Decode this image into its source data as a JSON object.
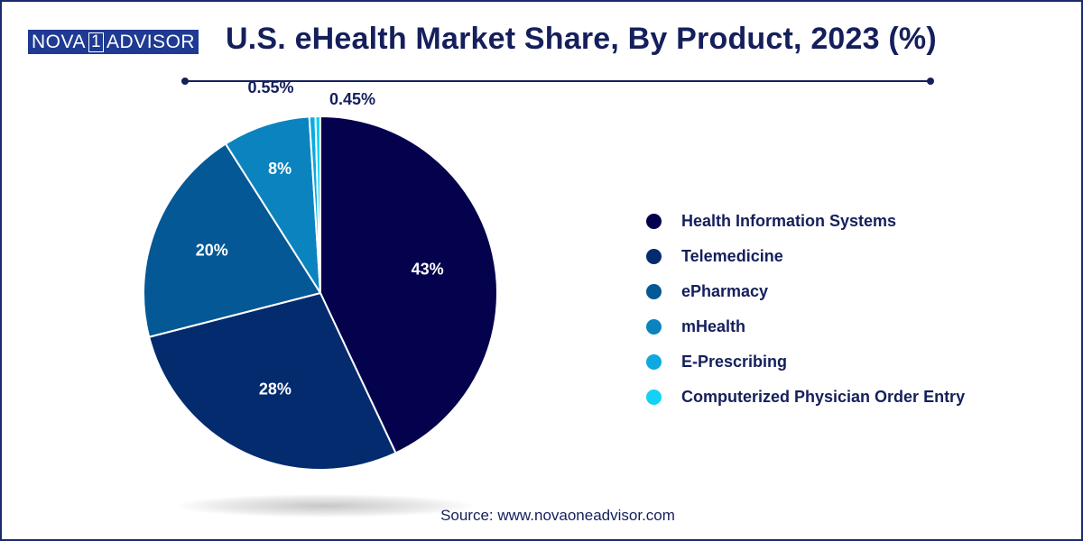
{
  "brand": {
    "logo_left": "NOVA",
    "logo_mid": "1",
    "logo_right": "ADVISOR"
  },
  "chart_data": {
    "type": "pie",
    "title": "U.S. eHealth Market Share, By Product, 2023 (%)",
    "start": "12 o'clock",
    "direction": "clockwise",
    "slices": [
      {
        "label": "Health Information Systems",
        "value": 43,
        "value_label": "43%",
        "color": "#04024d",
        "text_color": "#ffffff"
      },
      {
        "label": "Telemedicine",
        "value": 28,
        "value_label": "28%",
        "color": "#032b6e",
        "text_color": "#ffffff"
      },
      {
        "label": "ePharmacy",
        "value": 20,
        "value_label": "20%",
        "color": "#035895",
        "text_color": "#ffffff"
      },
      {
        "label": "mHealth",
        "value": 8,
        "value_label": "8%",
        "color": "#0b83bf",
        "text_color": "#ffffff"
      },
      {
        "label": "E-Prescribing",
        "value": 0.55,
        "value_label": "0.55%",
        "color": "#0fa8e0",
        "text_color": "#151f5c"
      },
      {
        "label": "Computerized Physician Order Entry",
        "value": 0.45,
        "value_label": "0.45%",
        "color": "#13d2f5",
        "text_color": "#151f5c"
      }
    ],
    "legend": "right"
  },
  "source": "Source: www.novaoneadvisor.com"
}
